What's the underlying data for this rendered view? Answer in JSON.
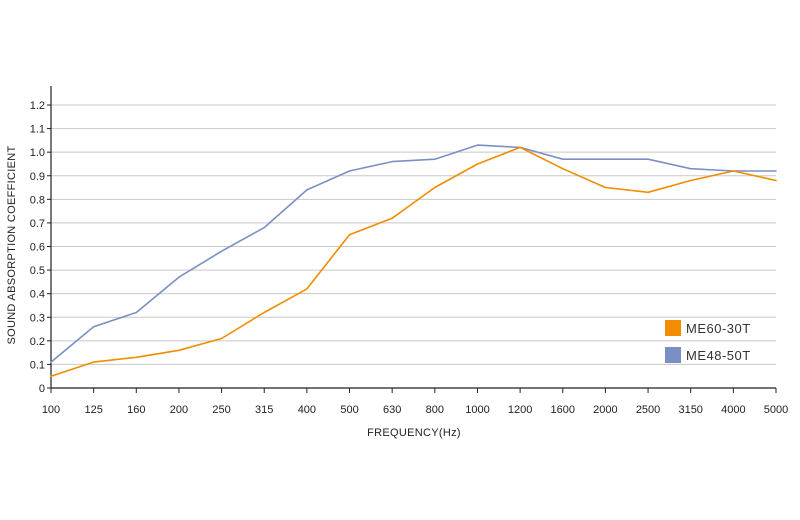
{
  "chart_data": {
    "type": "line",
    "title": "",
    "xlabel": "FREQUENCY(Hz)",
    "ylabel": "SOUND ABSORPTION COEFFICIENT",
    "categories": [
      "100",
      "125",
      "160",
      "200",
      "250",
      "315",
      "400",
      "500",
      "630",
      "800",
      "1000",
      "1200",
      "1600",
      "2000",
      "2500",
      "3150",
      "4000",
      "5000"
    ],
    "y_ticks": [
      "0",
      "0.1",
      "0.2",
      "0.3",
      "0.4",
      "0.5",
      "0.6",
      "0.7",
      "0.8",
      "0.9",
      "1.0",
      "1.1",
      "1.2"
    ],
    "ylim": [
      0,
      1.2
    ],
    "grid": true,
    "legend_position": "bottom-right",
    "series": [
      {
        "name": "ME60-30T",
        "color": "#f28c00",
        "values": [
          0.05,
          0.11,
          0.13,
          0.16,
          0.21,
          0.32,
          0.42,
          0.65,
          0.72,
          0.85,
          0.95,
          1.02,
          0.93,
          0.85,
          0.83,
          0.88,
          0.92,
          0.88
        ]
      },
      {
        "name": "ME48-50T",
        "color": "#7a90c4",
        "values": [
          0.11,
          0.26,
          0.32,
          0.47,
          0.58,
          0.68,
          0.84,
          0.92,
          0.96,
          0.97,
          1.03,
          1.02,
          0.97,
          0.97,
          0.97,
          0.93,
          0.92,
          0.92
        ]
      }
    ]
  }
}
